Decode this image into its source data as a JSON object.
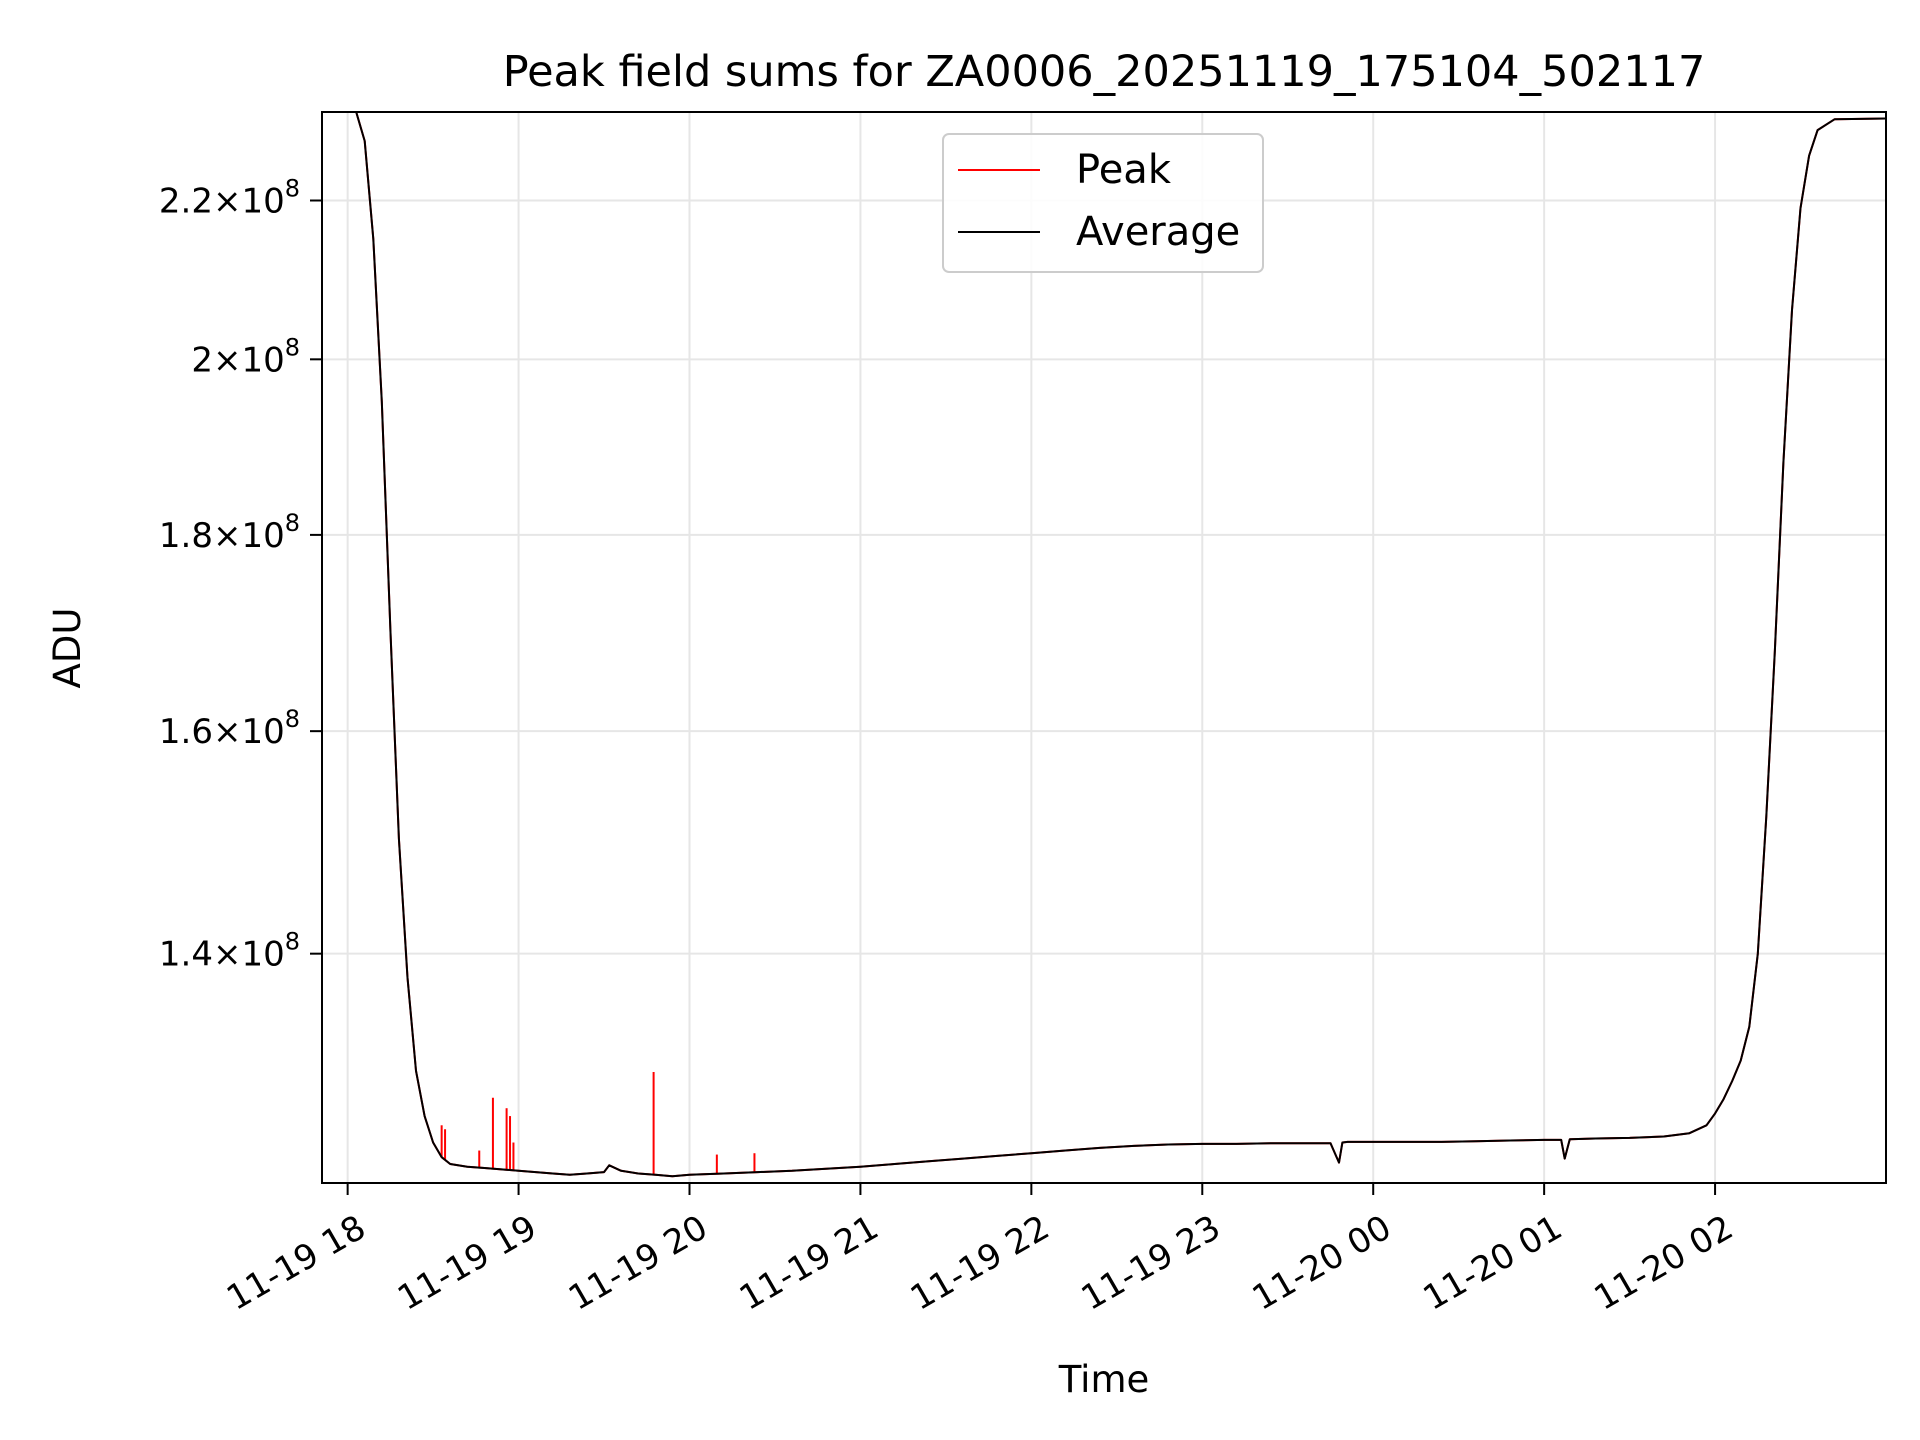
{
  "chart_data": {
    "type": "line",
    "title": "Peak field sums for ZA0006_20251119_175104_502117",
    "xlabel": "Time",
    "ylabel": "ADU",
    "yscale": "log",
    "xlim_hours": [
      -0.15,
      9.0
    ],
    "ylim": [
      122000000,
      232000000
    ],
    "x_origin": "11-19 18:00",
    "x_ticks": [
      {
        "label": "11-19 18",
        "hours": 0
      },
      {
        "label": "11-19 19",
        "hours": 1
      },
      {
        "label": "11-19 20",
        "hours": 2
      },
      {
        "label": "11-19 21",
        "hours": 3
      },
      {
        "label": "11-19 22",
        "hours": 4
      },
      {
        "label": "11-19 23",
        "hours": 5
      },
      {
        "label": "11-20 00",
        "hours": 6
      },
      {
        "label": "11-20 01",
        "hours": 7
      },
      {
        "label": "11-20 02",
        "hours": 8
      }
    ],
    "y_ticks": [
      {
        "mantissa": "1.4",
        "exp": "8",
        "value": 140000000
      },
      {
        "mantissa": "1.6",
        "exp": "8",
        "value": 160000000
      },
      {
        "mantissa": "1.8",
        "exp": "8",
        "value": 180000000
      },
      {
        "mantissa": "2",
        "exp": "8",
        "value": 200000000
      },
      {
        "mantissa": "2.2",
        "exp": "8",
        "value": 220000000
      }
    ],
    "grid": true,
    "legend_position": "top-center",
    "series": [
      {
        "name": "Average",
        "color": "#000000",
        "x_hours": [
          -0.15,
          0.05,
          0.1,
          0.15,
          0.2,
          0.25,
          0.3,
          0.35,
          0.4,
          0.45,
          0.5,
          0.55,
          0.6,
          0.7,
          0.8,
          0.9,
          1.0,
          1.1,
          1.2,
          1.3,
          1.4,
          1.5,
          1.53,
          1.6,
          1.7,
          1.8,
          1.9,
          2.0,
          2.2,
          2.4,
          2.6,
          2.8,
          3.0,
          3.2,
          3.4,
          3.6,
          3.8,
          4.0,
          4.2,
          4.4,
          4.6,
          4.8,
          5.0,
          5.2,
          5.4,
          5.6,
          5.75,
          5.8,
          5.82,
          5.85,
          6.0,
          6.2,
          6.4,
          6.6,
          6.8,
          7.0,
          7.1,
          7.12,
          7.15,
          7.3,
          7.5,
          7.7,
          7.85,
          7.95,
          8.0,
          8.05,
          8.1,
          8.15,
          8.2,
          8.25,
          8.3,
          8.35,
          8.4,
          8.45,
          8.5,
          8.55,
          8.6,
          8.7,
          9.0
        ],
        "values": [
          232000000,
          232000000,
          228000000,
          215000000,
          195000000,
          170000000,
          150000000,
          138000000,
          130500000,
          127000000,
          125000000,
          123900000,
          123400000,
          123200000,
          123100000,
          123000000,
          122900000,
          122800000,
          122700000,
          122600000,
          122700000,
          122800000,
          123300000,
          122900000,
          122700000,
          122600000,
          122500000,
          122600000,
          122700000,
          122800000,
          122900000,
          123050000,
          123200000,
          123400000,
          123600000,
          123800000,
          124000000,
          124200000,
          124400000,
          124600000,
          124750000,
          124850000,
          124900000,
          124900000,
          124950000,
          124950000,
          124950000,
          123500000,
          125000000,
          125050000,
          125050000,
          125050000,
          125050000,
          125100000,
          125150000,
          125200000,
          125200000,
          123800000,
          125250000,
          125300000,
          125350000,
          125450000,
          125700000,
          126300000,
          127200000,
          128300000,
          129700000,
          131300000,
          134000000,
          140000000,
          152000000,
          168000000,
          188000000,
          206000000,
          219000000,
          226000000,
          229500000,
          231000000,
          231100000
        ]
      },
      {
        "name": "Peak",
        "color": "#ff0000",
        "x_hours": [
          -0.15,
          0.05,
          0.1,
          0.15,
          0.2,
          0.25,
          0.3,
          0.35,
          0.4,
          0.45,
          0.5,
          0.55,
          0.6,
          0.7,
          0.8,
          0.9,
          1.0,
          1.1,
          1.2,
          1.3,
          1.4,
          1.5,
          1.53,
          1.6,
          1.7,
          1.8,
          1.9,
          2.0,
          2.2,
          2.4,
          2.6,
          2.8,
          3.0,
          3.2,
          3.4,
          3.6,
          3.8,
          4.0,
          4.2,
          4.4,
          4.6,
          4.8,
          5.0,
          5.2,
          5.4,
          5.6,
          5.75,
          5.8,
          5.82,
          5.85,
          6.0,
          6.2,
          6.4,
          6.6,
          6.8,
          7.0,
          7.1,
          7.12,
          7.15,
          7.3,
          7.5,
          7.7,
          7.85,
          7.95,
          8.0,
          8.05,
          8.1,
          8.15,
          8.2,
          8.25,
          8.3,
          8.35,
          8.4,
          8.45,
          8.5,
          8.55,
          8.6,
          8.7,
          9.0
        ],
        "values": [
          232000000,
          232000000,
          228000000,
          215000000,
          195000000,
          170000000,
          150000000,
          138000000,
          130500000,
          127000000,
          125000000,
          123900000,
          123400000,
          123200000,
          123100000,
          123000000,
          122900000,
          122800000,
          122700000,
          122600000,
          122700000,
          122800000,
          123300000,
          122900000,
          122700000,
          122600000,
          122500000,
          122600000,
          122700000,
          122800000,
          122900000,
          123050000,
          123200000,
          123400000,
          123600000,
          123800000,
          124000000,
          124200000,
          124400000,
          124600000,
          124750000,
          124850000,
          124900000,
          124900000,
          124950000,
          124950000,
          124950000,
          123500000,
          125000000,
          125050000,
          125050000,
          125050000,
          125050000,
          125100000,
          125150000,
          125200000,
          125200000,
          123800000,
          125250000,
          125300000,
          125350000,
          125450000,
          125700000,
          126300000,
          127200000,
          128300000,
          129700000,
          131300000,
          134000000,
          140000000,
          152000000,
          168000000,
          188000000,
          206000000,
          219000000,
          226000000,
          229500000,
          231000000,
          231100000
        ],
        "spikes": [
          {
            "hours": 0.55,
            "value": 126300000
          },
          {
            "hours": 0.57,
            "value": 126000000
          },
          {
            "hours": 0.77,
            "value": 124400000
          },
          {
            "hours": 0.85,
            "value": 128400000
          },
          {
            "hours": 0.93,
            "value": 127600000
          },
          {
            "hours": 0.95,
            "value": 127000000
          },
          {
            "hours": 0.97,
            "value": 125000000
          },
          {
            "hours": 1.79,
            "value": 130400000
          },
          {
            "hours": 2.16,
            "value": 124100000
          },
          {
            "hours": 2.38,
            "value": 124200000
          }
        ]
      }
    ]
  }
}
